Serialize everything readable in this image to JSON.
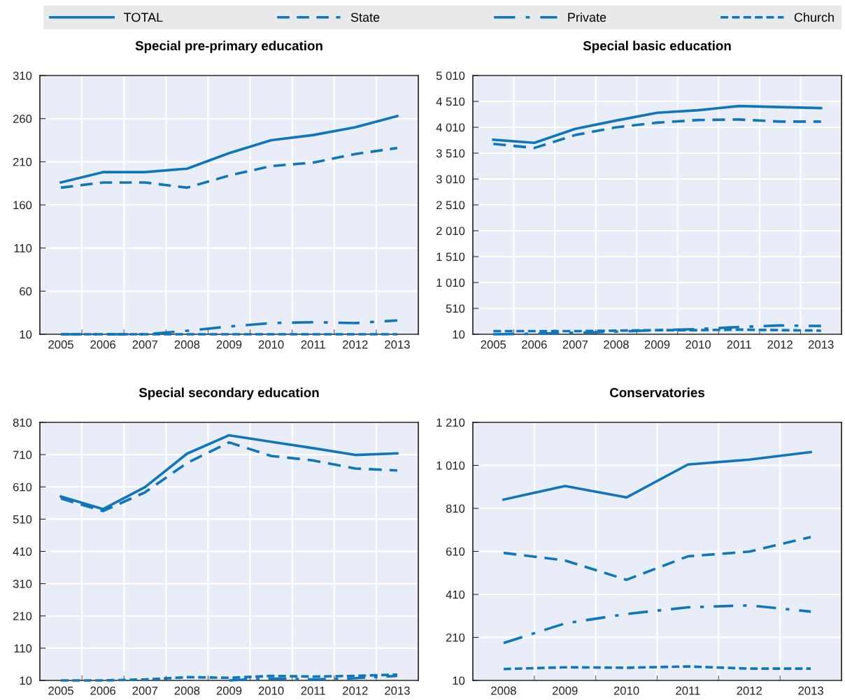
{
  "chart_data": [
    {
      "type": "line",
      "title": "Special pre-primary education",
      "legend": "top",
      "grid": true,
      "categories": [
        "2005",
        "2006",
        "2007",
        "2008",
        "2009",
        "2010",
        "2011",
        "2012",
        "2013"
      ],
      "ylim": [
        10,
        310
      ],
      "yticks": [
        10,
        60,
        110,
        160,
        210,
        260,
        310
      ],
      "series": [
        {
          "name": "TOTAL",
          "color": "#0f75bc",
          "line_style": "solid",
          "values": [
            186,
            198,
            198,
            202,
            220,
            235,
            241,
            250,
            263
          ]
        },
        {
          "name": "State",
          "color": "#0f75bc",
          "line_style": "dashed",
          "values": [
            180,
            186,
            186,
            180,
            194,
            205,
            209,
            219,
            226
          ]
        },
        {
          "name": "Private",
          "color": "#0f75bc",
          "line_style": "dashdot",
          "values": [
            10,
            10,
            10,
            14,
            19,
            23,
            24,
            23,
            26
          ]
        },
        {
          "name": "Church",
          "color": "#0f75bc",
          "line_style": "dotted",
          "values": [
            10,
            10,
            10,
            10,
            10,
            10,
            10,
            10,
            10
          ]
        }
      ]
    },
    {
      "type": "line",
      "title": "Special basic education",
      "grid": true,
      "categories": [
        "2005",
        "2006",
        "2007",
        "2008",
        "2009",
        "2010",
        "2011",
        "2012",
        "2013"
      ],
      "ylim": [
        10,
        5010
      ],
      "yticks": [
        10,
        510,
        {
          "value": 1010,
          "label": "1 010"
        },
        {
          "value": 1510,
          "label": "1 510"
        },
        {
          "value": 2010,
          "label": "2 010"
        },
        {
          "value": 2510,
          "label": "2 510"
        },
        {
          "value": 3010,
          "label": "3 010"
        },
        {
          "value": 3510,
          "label": "3 510"
        },
        {
          "value": 4010,
          "label": "4 010"
        },
        {
          "value": 4510,
          "label": "4 510"
        },
        {
          "value": 5010,
          "label": "5 010"
        }
      ],
      "series": [
        {
          "color": "#0f75bc",
          "line_style": "solid",
          "values": [
            3770,
            3710,
            3980,
            4140,
            4290,
            4340,
            4420,
            4400,
            4380
          ]
        },
        {
          "color": "#0f75bc",
          "line_style": "dashed",
          "values": [
            3690,
            3610,
            3860,
            4010,
            4100,
            4150,
            4160,
            4120,
            4120
          ]
        },
        {
          "color": "#0f75bc",
          "line_style": "dashdot",
          "values": [
            10,
            20,
            40,
            60,
            90,
            110,
            150,
            180,
            170
          ]
        },
        {
          "color": "#0f75bc",
          "line_style": "dotted",
          "values": [
            70,
            70,
            70,
            80,
            90,
            90,
            100,
            90,
            80
          ]
        }
      ]
    },
    {
      "type": "line",
      "title": "Special secondary education",
      "grid": true,
      "categories": [
        "2005",
        "2006",
        "2007",
        "2008",
        "2009",
        "2010",
        "2011",
        "2012",
        "2013"
      ],
      "ylim": [
        10,
        810
      ],
      "yticks": [
        10,
        110,
        210,
        310,
        410,
        510,
        610,
        710,
        810
      ],
      "series": [
        {
          "color": "#0f75bc",
          "line_style": "solid",
          "values": [
            580,
            541,
            609,
            713,
            770,
            750,
            730,
            709,
            714
          ]
        },
        {
          "color": "#0f75bc",
          "line_style": "dashed",
          "values": [
            574,
            535,
            593,
            684,
            748,
            706,
            692,
            667,
            661
          ]
        },
        {
          "color": "#0f75bc",
          "line_style": "dashdot",
          "values": [
            null,
            null,
            null,
            null,
            10,
            16,
            13,
            17,
            24
          ]
        },
        {
          "color": "#0f75bc",
          "line_style": "dotted",
          "values": [
            10,
            10,
            13,
            20,
            18,
            24,
            22,
            24,
            28
          ]
        }
      ]
    },
    {
      "type": "line",
      "title": "Conservatories",
      "grid": true,
      "categories": [
        "2008",
        "2009",
        "2010",
        "2011",
        "2012",
        "2013"
      ],
      "ylim": [
        10,
        1210
      ],
      "yticks": [
        10,
        210,
        410,
        610,
        810,
        {
          "value": 1010,
          "label": "1 010"
        },
        {
          "value": 1210,
          "label": "1 210"
        }
      ],
      "series": [
        {
          "color": "#0f75bc",
          "line_style": "solid",
          "values": [
            851,
            914,
            861,
            1014,
            1037,
            1072
          ]
        },
        {
          "color": "#0f75bc",
          "line_style": "dashed",
          "values": [
            603,
            568,
            478,
            587,
            609,
            677
          ]
        },
        {
          "color": "#0f75bc",
          "line_style": "dashdot",
          "values": [
            184,
            275,
            319,
            350,
            359,
            330
          ]
        },
        {
          "color": "#0f75bc",
          "line_style": "dotted",
          "values": [
            63,
            71,
            69,
            75,
            65,
            65
          ]
        }
      ]
    }
  ]
}
